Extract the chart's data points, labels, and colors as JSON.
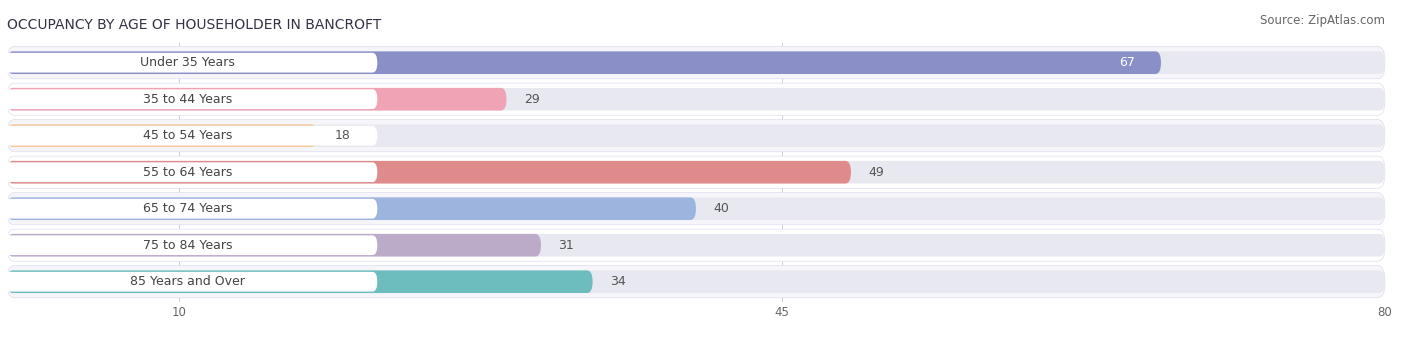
{
  "title": "OCCUPANCY BY AGE OF HOUSEHOLDER IN BANCROFT",
  "source": "Source: ZipAtlas.com",
  "categories": [
    "Under 35 Years",
    "35 to 44 Years",
    "45 to 54 Years",
    "55 to 64 Years",
    "65 to 74 Years",
    "75 to 84 Years",
    "85 Years and Over"
  ],
  "values": [
    67,
    29,
    18,
    49,
    40,
    31,
    34
  ],
  "bar_colors": [
    "#8b8fc8",
    "#f0a3b5",
    "#f6c99a",
    "#e08b8b",
    "#9db5de",
    "#bbaac8",
    "#6dbcbe"
  ],
  "value_in_bar": [
    true,
    false,
    false,
    false,
    false,
    false,
    false
  ],
  "xlim_data": [
    0,
    80
  ],
  "xticks": [
    10,
    45,
    80
  ],
  "title_fontsize": 10,
  "source_fontsize": 8.5,
  "label_fontsize": 9,
  "value_fontsize": 9,
  "bg_color": "#ffffff",
  "bar_track_color": "#e8e8f0",
  "row_bg_even": "#f5f5fa",
  "row_bg_odd": "#ffffff"
}
